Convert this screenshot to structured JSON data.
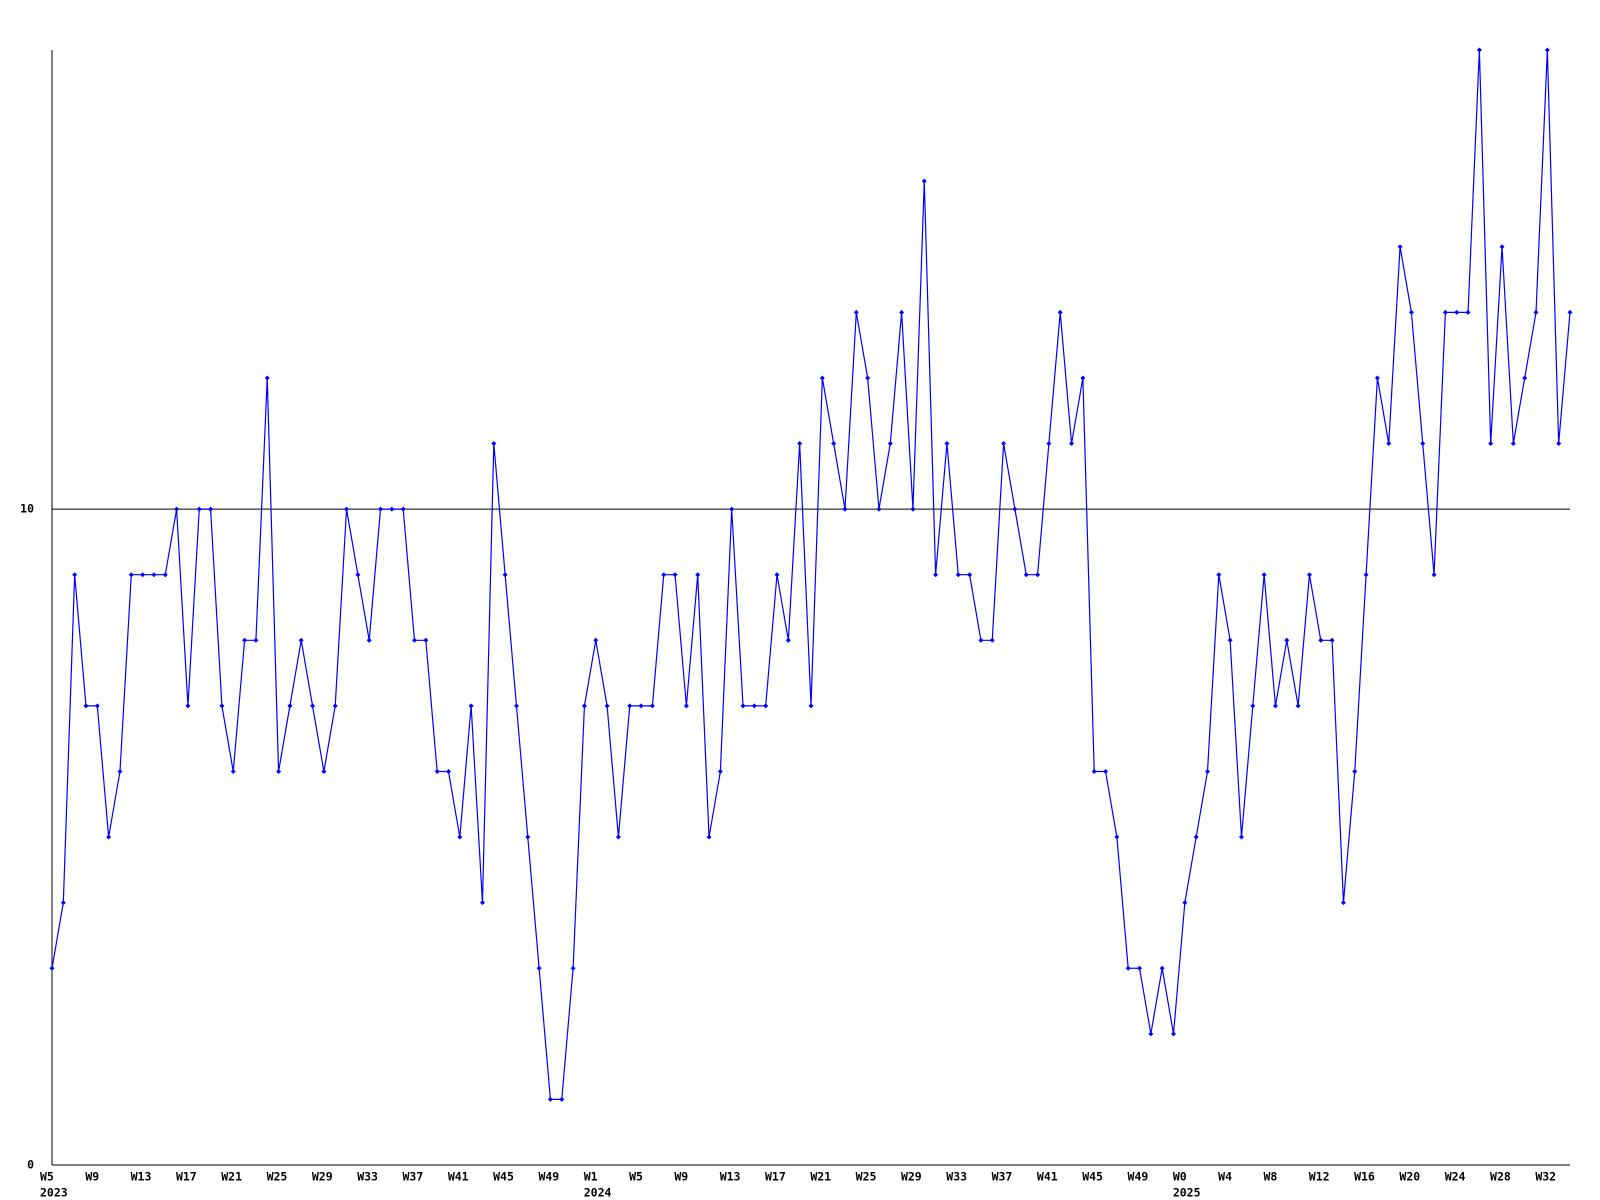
{
  "chart_data": {
    "type": "line",
    "categories": [
      "W5",
      null,
      null,
      null,
      "W9",
      null,
      null,
      null,
      "W13",
      null,
      null,
      null,
      "W17",
      null,
      null,
      null,
      "W21",
      null,
      null,
      null,
      "W25",
      null,
      null,
      null,
      "W29",
      null,
      null,
      null,
      "W33",
      null,
      null,
      null,
      "W37",
      null,
      null,
      null,
      "W41",
      null,
      null,
      null,
      "W45",
      null,
      null,
      null,
      "W49",
      null,
      null,
      null,
      "W1",
      null,
      null,
      null,
      "W5",
      null,
      null,
      null,
      "W9",
      null,
      null,
      null,
      "W13",
      null,
      null,
      null,
      "W17",
      null,
      null,
      null,
      "W21",
      null,
      null,
      null,
      "W25",
      null,
      null,
      null,
      "W29",
      null,
      null,
      null,
      "W33",
      null,
      null,
      null,
      "W37",
      null,
      null,
      null,
      "W41",
      null,
      null,
      null,
      "W45",
      null,
      null,
      null,
      "W49",
      null,
      null,
      null,
      "W0",
      null,
      null,
      null,
      "W4",
      null,
      null,
      null,
      "W8",
      null,
      null,
      null,
      "W12",
      null,
      null,
      null,
      "W16",
      null,
      null,
      null,
      "W20",
      null,
      null,
      null,
      "W24",
      null,
      null,
      null,
      "W28",
      null,
      null,
      null,
      "W32",
      null,
      null
    ],
    "category_years": [
      "2023",
      null,
      null,
      null,
      null,
      null,
      null,
      null,
      null,
      null,
      null,
      null,
      null,
      null,
      null,
      null,
      null,
      null,
      null,
      null,
      null,
      null,
      null,
      null,
      null,
      null,
      null,
      null,
      null,
      null,
      null,
      null,
      null,
      null,
      null,
      null,
      null,
      null,
      null,
      null,
      null,
      null,
      null,
      null,
      null,
      null,
      null,
      null,
      "2024",
      null,
      null,
      null,
      null,
      null,
      null,
      null,
      null,
      null,
      null,
      null,
      null,
      null,
      null,
      null,
      null,
      null,
      null,
      null,
      null,
      null,
      null,
      null,
      null,
      null,
      null,
      null,
      null,
      null,
      null,
      null,
      null,
      null,
      null,
      null,
      null,
      null,
      null,
      null,
      null,
      null,
      null,
      null,
      null,
      null,
      null,
      null,
      null,
      null,
      null,
      null,
      "2025",
      null,
      null,
      null,
      null,
      null,
      null,
      null,
      null,
      null,
      null,
      null,
      null,
      null,
      null,
      null,
      null,
      null,
      null,
      null,
      null,
      null,
      null,
      null,
      null,
      null,
      null,
      null,
      null,
      null,
      null,
      null,
      null,
      null,
      null
    ],
    "series": [
      {
        "color": "#0000ff",
        "values": [
          3,
          4,
          9,
          7,
          7,
          5,
          6,
          9,
          9,
          9,
          9,
          10,
          7,
          10,
          10,
          7,
          6,
          8,
          8,
          12,
          6,
          7,
          8,
          7,
          6,
          7,
          10,
          9,
          8,
          10,
          10,
          10,
          8,
          8,
          6,
          6,
          5,
          7,
          4,
          11,
          9,
          7,
          5,
          3,
          1,
          1,
          3,
          7,
          8,
          7,
          5,
          7,
          7,
          7,
          9,
          9,
          7,
          9,
          5,
          6,
          10,
          7,
          7,
          7,
          9,
          8,
          11,
          7,
          12,
          11,
          10,
          13,
          12,
          10,
          11,
          13,
          10,
          15,
          9,
          11,
          9,
          9,
          8,
          8,
          11,
          10,
          9,
          9,
          11,
          13,
          11,
          12,
          6,
          6,
          5,
          3,
          3,
          2,
          3,
          2,
          4,
          5,
          6,
          9,
          8,
          5,
          7,
          9,
          7,
          8,
          7,
          9,
          8,
          8,
          4,
          6,
          9,
          12,
          11,
          14,
          13,
          11,
          9,
          13,
          13,
          13,
          17,
          11,
          14,
          11,
          12,
          13,
          17,
          11,
          13
        ]
      }
    ],
    "ylim": [
      0,
      17
    ],
    "yticks": [
      0,
      10
    ],
    "grid": true
  }
}
